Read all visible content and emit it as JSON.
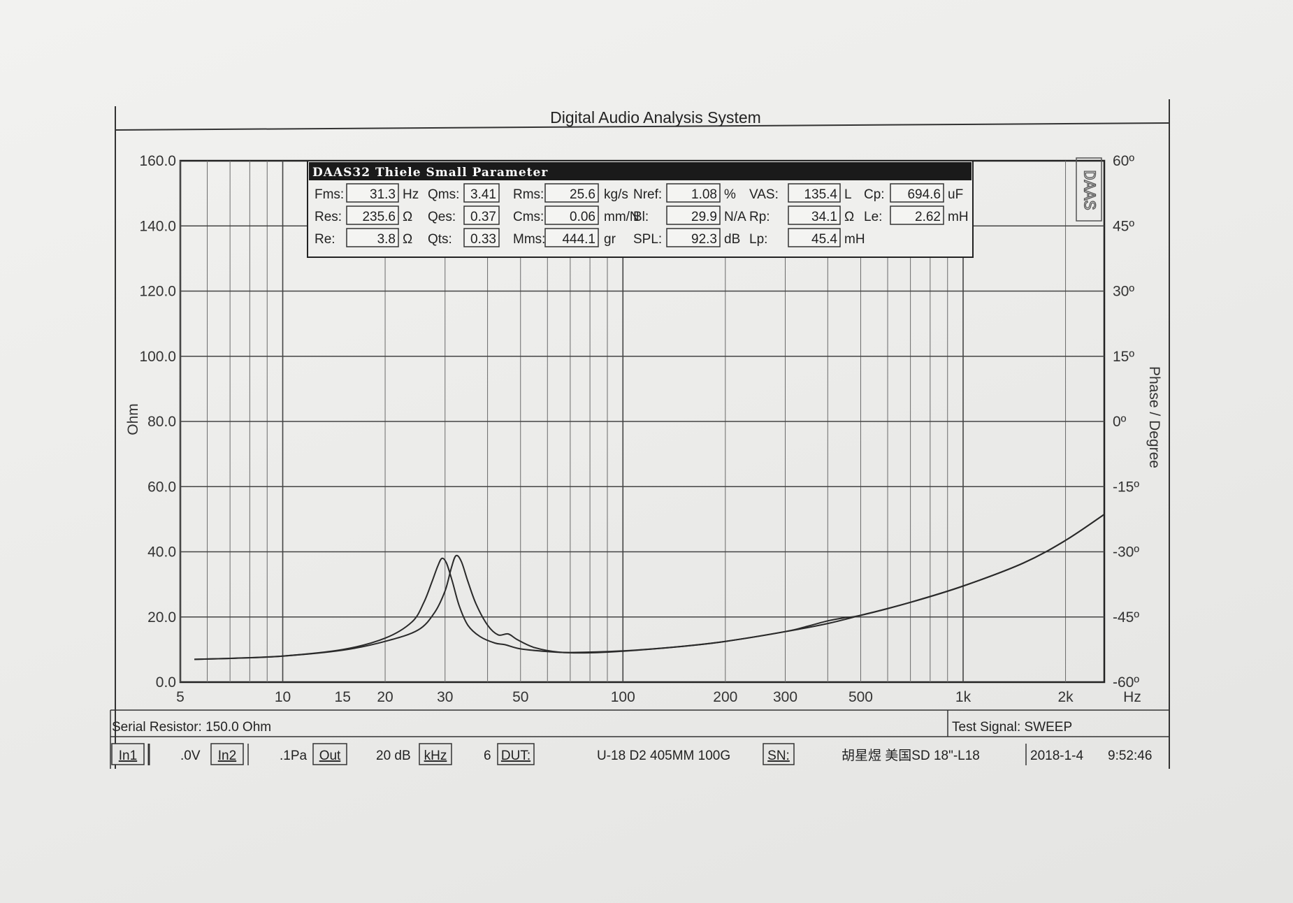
{
  "window": {
    "title": "Digital Audio Analysis System"
  },
  "chart_data": {
    "type": "line",
    "y_label": "Ohm",
    "y2_label": "Phase / Degree",
    "x_scale": "log",
    "x_unit": "Hz",
    "x_range": [
      5,
      2600
    ],
    "y_range": [
      0,
      160
    ],
    "y2_range": [
      -60,
      60
    ],
    "y_ticks": [
      "0.0",
      "20.0",
      "40.0",
      "60.0",
      "80.0",
      "100.0",
      "120.0",
      "140.0",
      "160.0"
    ],
    "y2_ticks": [
      "-60º",
      "-45º",
      "-30º",
      "-15º",
      "0º",
      "15º",
      "30º",
      "45º",
      "60º"
    ],
    "x_ticks": [
      {
        "value": 5,
        "label": "5"
      },
      {
        "value": 10,
        "label": "10"
      },
      {
        "value": 15,
        "label": "15"
      },
      {
        "value": 20,
        "label": "20"
      },
      {
        "value": 30,
        "label": "30"
      },
      {
        "value": 50,
        "label": "50"
      },
      {
        "value": 100,
        "label": "100"
      },
      {
        "value": 200,
        "label": "200"
      },
      {
        "value": 300,
        "label": "300"
      },
      {
        "value": 500,
        "label": "500"
      },
      {
        "value": 1000,
        "label": "1k"
      },
      {
        "value": 2000,
        "label": "2k"
      }
    ],
    "grid": true,
    "series": [
      {
        "points": [
          [
            5.5,
            7.0
          ],
          [
            7,
            7.3
          ],
          [
            10,
            8.0
          ],
          [
            15,
            10.0
          ],
          [
            20,
            13.5
          ],
          [
            24,
            18.5
          ],
          [
            26,
            24.5
          ],
          [
            27.5,
            31.0
          ],
          [
            28.6,
            35.8
          ],
          [
            29.4,
            38.0
          ],
          [
            30.3,
            36.5
          ],
          [
            31.5,
            31.0
          ],
          [
            33,
            23.5
          ],
          [
            35,
            17.5
          ],
          [
            38,
            14.0
          ],
          [
            42,
            12.0
          ],
          [
            45,
            11.5
          ],
          [
            50,
            10.2
          ],
          [
            60,
            9.4
          ],
          [
            70,
            9.1
          ],
          [
            100,
            9.6
          ],
          [
            150,
            11.0
          ],
          [
            200,
            12.5
          ],
          [
            300,
            15.5
          ],
          [
            400,
            18.0
          ],
          [
            500,
            20.5
          ],
          [
            700,
            24.5
          ],
          [
            1000,
            29.5
          ],
          [
            1500,
            36.5
          ],
          [
            2000,
            43.5
          ],
          [
            2600,
            51.5
          ]
        ]
      },
      {
        "points": [
          [
            5.5,
            7.0
          ],
          [
            7,
            7.3
          ],
          [
            10,
            8.0
          ],
          [
            15,
            9.8
          ],
          [
            20,
            12.5
          ],
          [
            25,
            16.0
          ],
          [
            28,
            21.5
          ],
          [
            30,
            28.0
          ],
          [
            31.3,
            35.0
          ],
          [
            32.3,
            38.8
          ],
          [
            33.5,
            37.0
          ],
          [
            35,
            31.0
          ],
          [
            37,
            24.0
          ],
          [
            40,
            17.5
          ],
          [
            43,
            14.5
          ],
          [
            46,
            14.8
          ],
          [
            49,
            13.0
          ],
          [
            55,
            10.6
          ],
          [
            65,
            9.2
          ],
          [
            80,
            9.0
          ],
          [
            100,
            9.5
          ],
          [
            150,
            11.0
          ],
          [
            200,
            12.5
          ],
          [
            300,
            15.5
          ],
          [
            350,
            17.2
          ],
          [
            400,
            18.8
          ],
          [
            450,
            19.8
          ],
          [
            500,
            20.5
          ],
          [
            700,
            24.5
          ],
          [
            1000,
            29.5
          ],
          [
            1500,
            36.5
          ],
          [
            2000,
            43.5
          ],
          [
            2600,
            51.5
          ]
        ]
      }
    ]
  },
  "ts_panel": {
    "title": "DAAS32 Thiele Small Parameter",
    "logo": "DAAS",
    "cols": [
      [
        {
          "label": "Fms:",
          "value": "31.3",
          "unit": "Hz"
        },
        {
          "label": "Res:",
          "value": "235.6",
          "unit": "Ω"
        },
        {
          "label": "Re:",
          "value": "3.8",
          "unit": "Ω"
        }
      ],
      [
        {
          "label": "Qms:",
          "value": "3.41",
          "unit": ""
        },
        {
          "label": "Qes:",
          "value": "0.37",
          "unit": ""
        },
        {
          "label": "Qts:",
          "value": "0.33",
          "unit": ""
        }
      ],
      [
        {
          "label": "Rms:",
          "value": "25.6",
          "unit": "kg/s"
        },
        {
          "label": "Cms:",
          "value": "0.06",
          "unit": "mm/N"
        },
        {
          "label": "Mms:",
          "value": "444.1",
          "unit": "gr"
        }
      ],
      [
        {
          "label": "Nref:",
          "value": "1.08",
          "unit": "%"
        },
        {
          "label": "Bl:",
          "value": "29.9",
          "unit": "N/A"
        },
        {
          "label": "SPL:",
          "value": "92.3",
          "unit": "dB"
        }
      ],
      [
        {
          "label": "VAS:",
          "value": "135.4",
          "unit": "L"
        },
        {
          "label": "Rp:",
          "value": "34.1",
          "unit": "Ω"
        },
        {
          "label": "Lp:",
          "value": "45.4",
          "unit": "mH"
        }
      ],
      [
        {
          "label": "Cp:",
          "value": "694.6",
          "unit": "uF"
        },
        {
          "label": "Le:",
          "value": "2.62",
          "unit": "mH"
        }
      ]
    ]
  },
  "footer": {
    "serial_resistor": "Serial Resistor: 150.0 Ohm",
    "test_signal": "Test Signal: SWEEP",
    "in1": "In1",
    "in1_val": ".0V",
    "in2": "In2",
    "in2_val": ".1Pa",
    "out": "Out",
    "out_val": "20 dB",
    "khz": "kHz",
    "khz_val": "6",
    "dut": "DUT:",
    "dut_val": "U-18  D2   405MM   100G",
    "sn": "SN:",
    "sn_val": "胡星煜    美国SD    18\"-L18",
    "date": "2018-1-4",
    "time": "9:52:46"
  }
}
